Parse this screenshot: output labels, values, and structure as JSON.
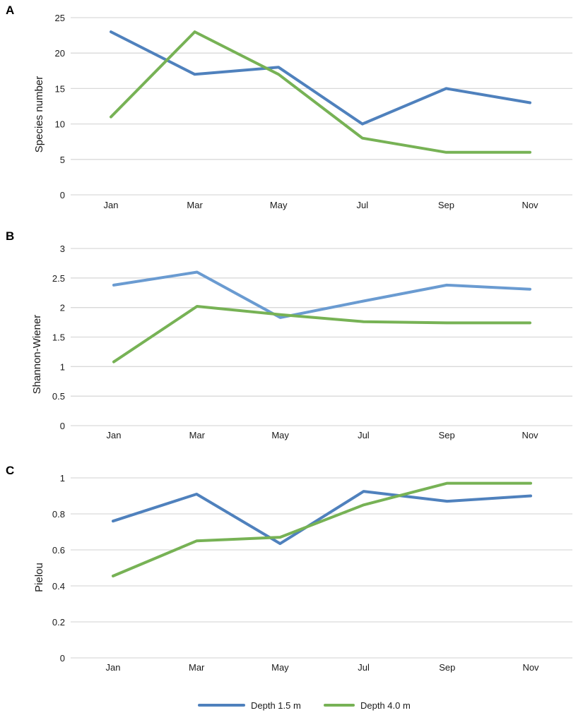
{
  "legend": [
    {
      "name": "Depth 1.5 m",
      "color": "#4f81bd"
    },
    {
      "name": "Depth 4.0 m",
      "color": "#77b255"
    }
  ],
  "chart_data": [
    {
      "type": "line",
      "panel_label": "A",
      "ylabel": "Species number",
      "categories": [
        "Jan",
        "Mar",
        "May",
        "Jul",
        "Sep",
        "Nov"
      ],
      "ylim": [
        0,
        25
      ],
      "yticks": [
        "0",
        "5",
        "10",
        "15",
        "20",
        "25"
      ],
      "grid": true,
      "series": [
        {
          "name": "Depth 1.5 m",
          "color": "#4f81bd",
          "values": [
            23,
            17,
            18,
            10,
            15,
            13
          ]
        },
        {
          "name": "Depth 4.0 m",
          "color": "#77b255",
          "values": [
            11,
            23,
            17,
            8,
            6,
            6
          ]
        }
      ]
    },
    {
      "type": "line",
      "panel_label": "B",
      "ylabel": "Shannon-Wiener",
      "categories": [
        "Jan",
        "Mar",
        "May",
        "Jul",
        "Sep",
        "Nov"
      ],
      "ylim": [
        0,
        3
      ],
      "yticks": [
        "0",
        "0.5",
        "1",
        "1.5",
        "2",
        "2.5",
        "3"
      ],
      "grid": true,
      "series": [
        {
          "name": "Depth 1.5 m",
          "color": "#6a9bd1",
          "values": [
            2.38,
            2.6,
            1.83,
            2.11,
            2.38,
            2.31
          ]
        },
        {
          "name": "Depth 4.0 m",
          "color": "#77b255",
          "values": [
            1.08,
            2.02,
            1.88,
            1.76,
            1.74,
            1.74
          ]
        }
      ]
    },
    {
      "type": "line",
      "panel_label": "C",
      "ylabel": "Pielou",
      "categories": [
        "Jan",
        "Mar",
        "May",
        "Jul",
        "Sep",
        "Nov"
      ],
      "ylim": [
        0,
        1
      ],
      "yticks": [
        "0",
        "0.2",
        "0.4",
        "0.6",
        "0.8",
        "1"
      ],
      "grid": true,
      "series": [
        {
          "name": "Depth 1.5 m",
          "color": "#4f81bd",
          "values": [
            0.76,
            0.91,
            0.635,
            0.925,
            0.87,
            0.9
          ]
        },
        {
          "name": "Depth 4.0 m",
          "color": "#77b255",
          "values": [
            0.455,
            0.65,
            0.67,
            0.85,
            0.97,
            0.97
          ]
        }
      ]
    }
  ]
}
